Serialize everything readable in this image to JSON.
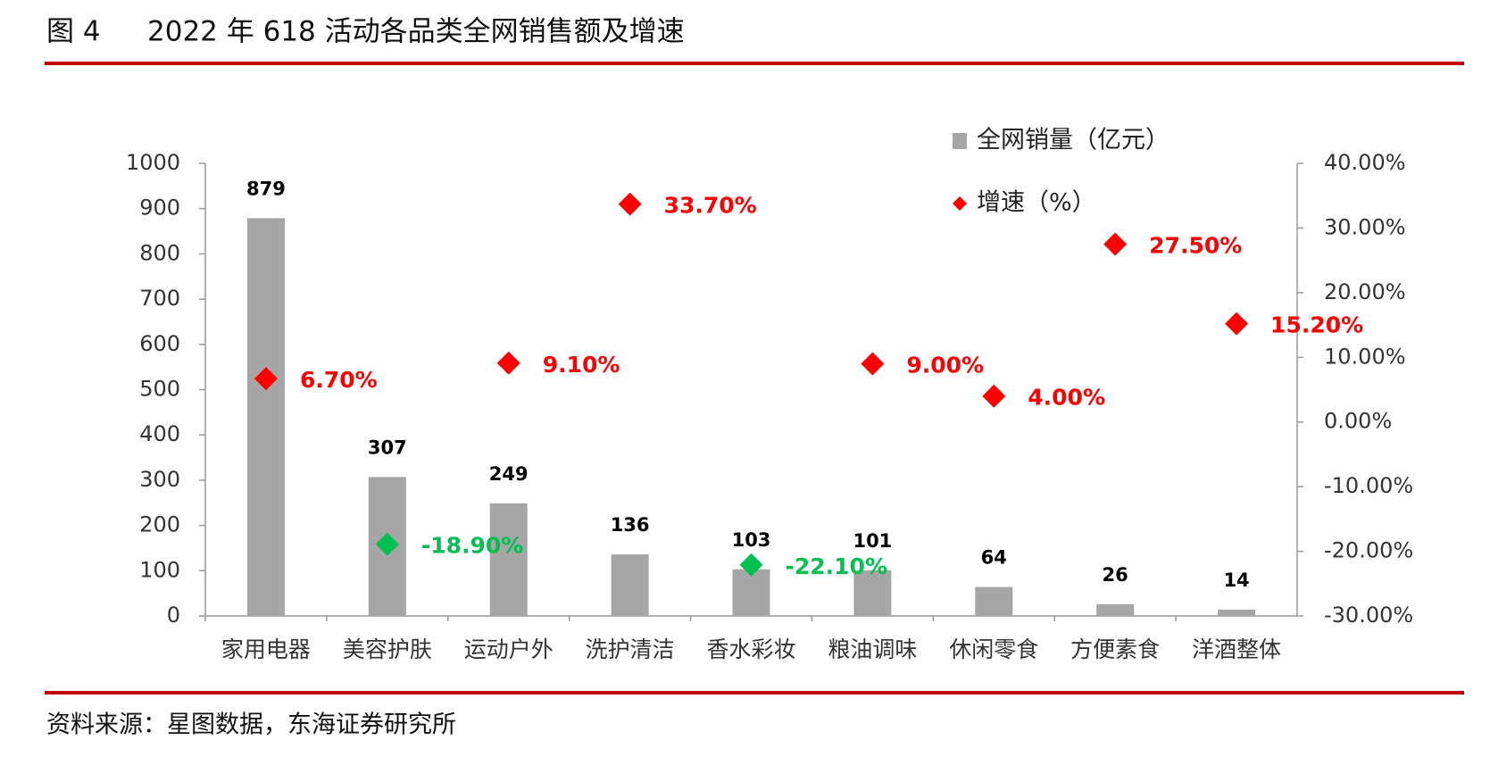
{
  "header": {
    "figure": "图 4",
    "title": "2022 年 618 活动各品类全网销售额及增速"
  },
  "chart_data": {
    "type": "bar_scatter",
    "categories": [
      "家用电器",
      "美容护肤",
      "运动户外",
      "洗护清洁",
      "香水彩妆",
      "粮油调味",
      "休闲零食",
      "方便素食",
      "洋酒整体"
    ],
    "series": [
      {
        "name": "全网销量（亿元）",
        "type": "bar",
        "color": "#a6a6a6",
        "values": [
          879,
          307,
          249,
          136,
          103,
          101,
          64,
          26,
          14
        ]
      },
      {
        "name": "增速（%）",
        "type": "scatter",
        "axis": "y2",
        "color": "#ff0000",
        "colors": [
          "#ff0000",
          "#00c050",
          "#ff0000",
          "#ff0000",
          "#00c050",
          "#ff0000",
          "#ff0000",
          "#ff0000",
          "#ff0000"
        ],
        "values": [
          6.7,
          -18.9,
          9.1,
          33.7,
          -22.1,
          9.0,
          4.0,
          27.5,
          15.2
        ],
        "value_labels": [
          "6.70%",
          "-18.90%",
          "9.10%",
          "33.70%",
          "-22.10%",
          "9.00%",
          "4.00%",
          "27.50%",
          "15.20%"
        ]
      }
    ],
    "ylim": [
      0,
      1000
    ],
    "yticks": [
      0,
      100,
      200,
      300,
      400,
      500,
      600,
      700,
      800,
      900,
      1000
    ],
    "y2lim": [
      -30,
      40
    ],
    "y2ticks": [
      {
        "value": -30,
        "label": "-30.00%"
      },
      {
        "value": -20,
        "label": "-20.00%"
      },
      {
        "value": -10,
        "label": "-10.00%"
      },
      {
        "value": 0,
        "label": "0.00%"
      },
      {
        "value": 10,
        "label": "10.00%"
      },
      {
        "value": 20,
        "label": "20.00%"
      },
      {
        "value": 30,
        "label": "30.00%"
      },
      {
        "value": 40,
        "label": "40.00%"
      }
    ],
    "grid": false
  },
  "footer": {
    "source": "资料来源：星图数据，东海证券研究所"
  }
}
